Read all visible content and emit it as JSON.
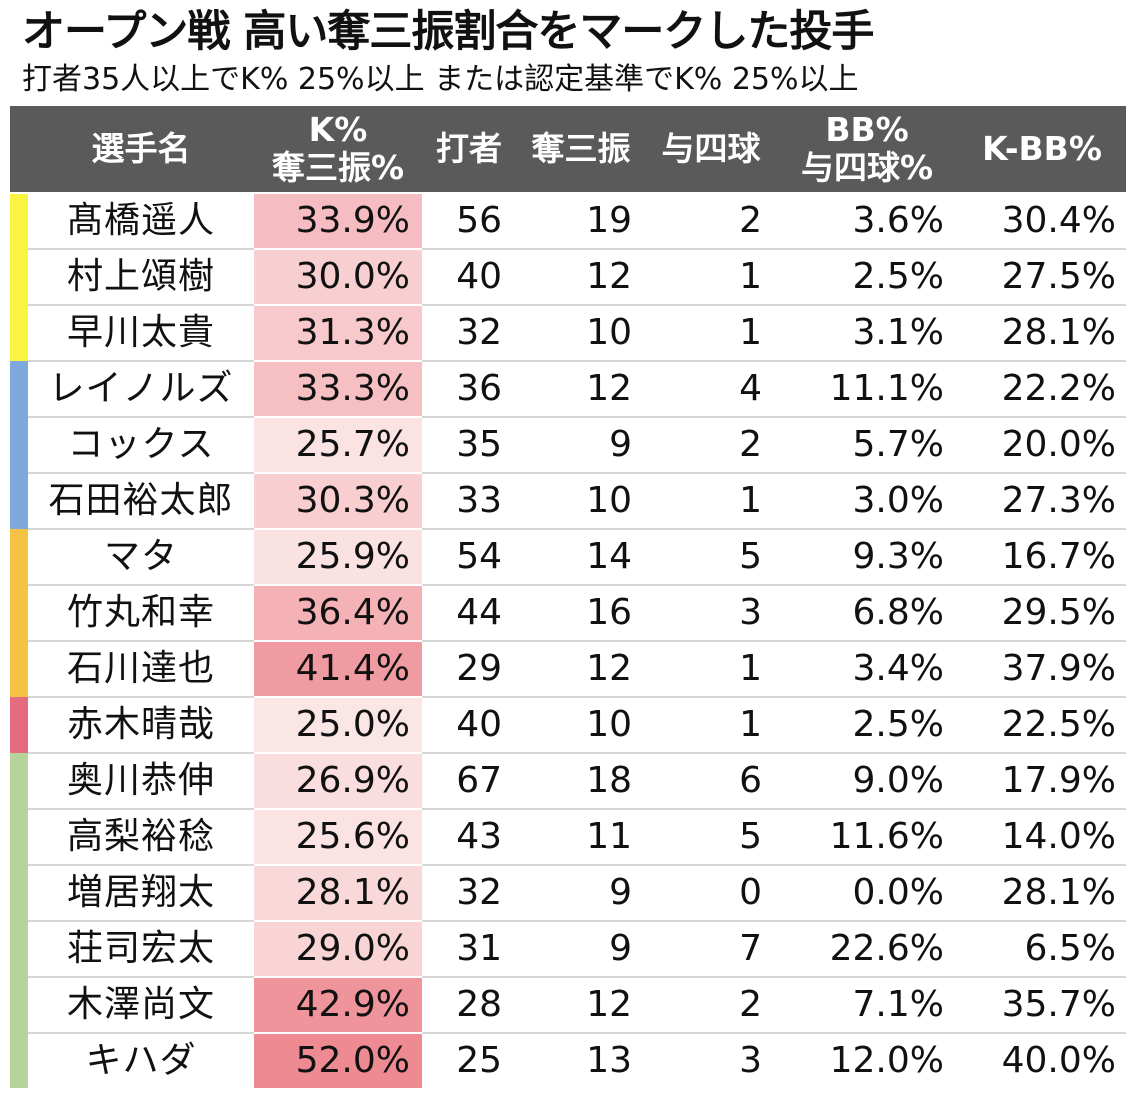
{
  "title": "オープン戦 高い奪三振割合をマークした投手",
  "subtitle": "打者35人以上でK% 25%以上 または認定基準でK% 25%以上",
  "headers": {
    "name": "選手名",
    "k_line1": "K%",
    "k_line2": "奪三振%",
    "batters": "打者",
    "strikeouts": "奪三振",
    "walks": "与四球",
    "bb_line1": "BB%",
    "bb_line2": "与四球%",
    "kbb": "K-BB%"
  },
  "rows": [
    {
      "name": "髙橋遥人",
      "k": "33.9%",
      "batters": "56",
      "strikeouts": "19",
      "walks": "2",
      "bb": "3.6%",
      "kbb": "30.4%",
      "k_value": 33.9,
      "team_color": "#f9f342"
    },
    {
      "name": "村上頌樹",
      "k": "30.0%",
      "batters": "40",
      "strikeouts": "12",
      "walks": "1",
      "bb": "2.5%",
      "kbb": "27.5%",
      "k_value": 30.0,
      "team_color": "#f9f342"
    },
    {
      "name": "早川太貴",
      "k": "31.3%",
      "batters": "32",
      "strikeouts": "10",
      "walks": "1",
      "bb": "3.1%",
      "kbb": "28.1%",
      "k_value": 31.3,
      "team_color": "#f9f342"
    },
    {
      "name": "レイノルズ",
      "k": "33.3%",
      "batters": "36",
      "strikeouts": "12",
      "walks": "4",
      "bb": "11.1%",
      "kbb": "22.2%",
      "k_value": 33.3,
      "team_color": "#7fa8dd"
    },
    {
      "name": "コックス",
      "k": "25.7%",
      "batters": "35",
      "strikeouts": "9",
      "walks": "2",
      "bb": "5.7%",
      "kbb": "20.0%",
      "k_value": 25.7,
      "team_color": "#7fa8dd"
    },
    {
      "name": "石田裕太郎",
      "k": "30.3%",
      "batters": "33",
      "strikeouts": "10",
      "walks": "1",
      "bb": "3.0%",
      "kbb": "27.3%",
      "k_value": 30.3,
      "team_color": "#7fa8dd"
    },
    {
      "name": "マタ",
      "k": "25.9%",
      "batters": "54",
      "strikeouts": "14",
      "walks": "5",
      "bb": "9.3%",
      "kbb": "16.7%",
      "k_value": 25.9,
      "team_color": "#f5c243"
    },
    {
      "name": "竹丸和幸",
      "k": "36.4%",
      "batters": "44",
      "strikeouts": "16",
      "walks": "3",
      "bb": "6.8%",
      "kbb": "29.5%",
      "k_value": 36.4,
      "team_color": "#f5c243"
    },
    {
      "name": "石川達也",
      "k": "41.4%",
      "batters": "29",
      "strikeouts": "12",
      "walks": "1",
      "bb": "3.4%",
      "kbb": "37.9%",
      "k_value": 41.4,
      "team_color": "#f5c243"
    },
    {
      "name": "赤木晴哉",
      "k": "25.0%",
      "batters": "40",
      "strikeouts": "10",
      "walks": "1",
      "bb": "2.5%",
      "kbb": "22.5%",
      "k_value": 25.0,
      "team_color": "#e56b7e"
    },
    {
      "name": "奥川恭伸",
      "k": "26.9%",
      "batters": "67",
      "strikeouts": "18",
      "walks": "6",
      "bb": "9.0%",
      "kbb": "17.9%",
      "k_value": 26.9,
      "team_color": "#b7d39c"
    },
    {
      "name": "高梨裕稔",
      "k": "25.6%",
      "batters": "43",
      "strikeouts": "11",
      "walks": "5",
      "bb": "11.6%",
      "kbb": "14.0%",
      "k_value": 25.6,
      "team_color": "#b7d39c"
    },
    {
      "name": "増居翔太",
      "k": "28.1%",
      "batters": "32",
      "strikeouts": "9",
      "walks": "0",
      "bb": "0.0%",
      "kbb": "28.1%",
      "k_value": 28.1,
      "team_color": "#b7d39c"
    },
    {
      "name": "荘司宏太",
      "k": "29.0%",
      "batters": "31",
      "strikeouts": "9",
      "walks": "7",
      "bb": "22.6%",
      "kbb": "6.5%",
      "k_value": 29.0,
      "team_color": "#b7d39c"
    },
    {
      "name": "木澤尚文",
      "k": "42.9%",
      "batters": "28",
      "strikeouts": "12",
      "walks": "2",
      "bb": "7.1%",
      "kbb": "35.7%",
      "k_value": 42.9,
      "team_color": "#b7d39c"
    },
    {
      "name": "キハダ",
      "k": "52.0%",
      "batters": "25",
      "strikeouts": "13",
      "walks": "3",
      "bb": "12.0%",
      "kbb": "40.0%",
      "k_value": 52.0,
      "team_color": "#b7d39c"
    }
  ],
  "colors": {
    "header_bg": "#5a5a5a",
    "header_text": "#ffffff",
    "heat_low": "#fbe6e6",
    "heat_high": "#ee8a92"
  }
}
